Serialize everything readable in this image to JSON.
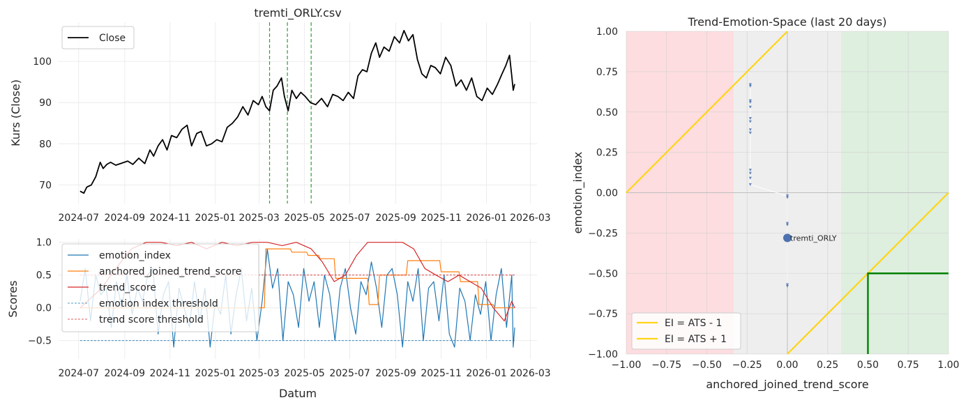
{
  "chart_data": [
    {
      "id": "price",
      "type": "line",
      "title": "tremti_ORLY.csv",
      "xlabel": "",
      "ylabel": "Kurs (Close)",
      "xlim": [
        "2024-06-04",
        "2026-03-10"
      ],
      "ylim": [
        65.5,
        109.5
      ],
      "x_ticks": [
        "2024-07",
        "2024-09",
        "2024-11",
        "2025-01",
        "2025-03",
        "2025-05",
        "2025-07",
        "2025-09",
        "2025-11",
        "2026-01",
        "2026-03"
      ],
      "y_ticks": [
        70,
        80,
        90,
        100
      ],
      "legend": {
        "position": "top-left",
        "entries": [
          "Close"
        ]
      },
      "grid": true,
      "vlines": [
        "2025-03-15",
        "2025-04-08",
        "2025-05-10"
      ],
      "series": [
        {
          "name": "Close",
          "color": "#000000",
          "x": [
            "2024-07-03",
            "2024-07-08",
            "2024-07-12",
            "2024-07-18",
            "2024-07-24",
            "2024-07-30",
            "2024-08-03",
            "2024-08-08",
            "2024-08-13",
            "2024-08-20",
            "2024-08-28",
            "2024-09-05",
            "2024-09-12",
            "2024-09-20",
            "2024-09-28",
            "2024-10-05",
            "2024-10-10",
            "2024-10-16",
            "2024-10-22",
            "2024-10-28",
            "2024-11-03",
            "2024-11-10",
            "2024-11-17",
            "2024-11-24",
            "2024-11-30",
            "2024-12-07",
            "2024-12-13",
            "2024-12-20",
            "2024-12-27",
            "2025-01-03",
            "2025-01-10",
            "2025-01-17",
            "2025-01-24",
            "2025-01-31",
            "2025-02-07",
            "2025-02-14",
            "2025-02-21",
            "2025-02-28",
            "2025-03-05",
            "2025-03-10",
            "2025-03-15",
            "2025-03-20",
            "2025-03-25",
            "2025-03-31",
            "2025-04-04",
            "2025-04-09",
            "2025-04-14",
            "2025-04-20",
            "2025-04-26",
            "2025-05-02",
            "2025-05-09",
            "2025-05-16",
            "2025-05-24",
            "2025-06-01",
            "2025-06-08",
            "2025-06-15",
            "2025-06-22",
            "2025-06-29",
            "2025-07-06",
            "2025-07-12",
            "2025-07-18",
            "2025-07-24",
            "2025-07-30",
            "2025-08-05",
            "2025-08-10",
            "2025-08-16",
            "2025-08-23",
            "2025-08-30",
            "2025-09-06",
            "2025-09-12",
            "2025-09-18",
            "2025-09-24",
            "2025-09-30",
            "2025-10-06",
            "2025-10-12",
            "2025-10-18",
            "2025-10-24",
            "2025-10-31",
            "2025-11-07",
            "2025-11-14",
            "2025-11-21",
            "2025-11-28",
            "2025-12-05",
            "2025-12-12",
            "2025-12-19",
            "2025-12-26",
            "2026-01-02",
            "2026-01-09",
            "2026-01-16",
            "2026-01-22",
            "2026-01-27",
            "2026-02-01",
            "2026-02-04",
            "2026-02-06",
            "2026-02-08"
          ],
          "y": [
            68.5,
            68.0,
            69.5,
            70.0,
            72.0,
            75.5,
            74.0,
            75.0,
            75.5,
            74.8,
            75.3,
            75.8,
            75.0,
            76.5,
            75.2,
            78.5,
            77.0,
            79.5,
            81.0,
            78.5,
            82.0,
            81.5,
            83.5,
            84.5,
            79.5,
            82.5,
            83.0,
            79.5,
            80.0,
            81.0,
            80.5,
            84.0,
            85.0,
            86.5,
            89.0,
            87.0,
            90.5,
            89.5,
            91.5,
            89.0,
            88.0,
            93.0,
            94.0,
            96.0,
            91.5,
            88.0,
            93.0,
            91.0,
            92.5,
            91.5,
            90.0,
            89.5,
            91.0,
            89.0,
            92.0,
            91.5,
            90.5,
            92.5,
            91.0,
            96.5,
            98.0,
            97.5,
            102.0,
            104.5,
            101.0,
            103.5,
            102.5,
            106.0,
            104.5,
            107.5,
            105.0,
            106.5,
            100.5,
            97.0,
            96.0,
            99.0,
            98.5,
            97.0,
            101.0,
            99.0,
            94.0,
            95.5,
            93.0,
            96.0,
            91.5,
            90.5,
            93.5,
            92.0,
            94.5,
            97.0,
            99.0,
            101.5,
            96.5,
            93.0,
            94.5
          ]
        }
      ]
    },
    {
      "id": "scores",
      "type": "line",
      "title": "",
      "xlabel": "Datum",
      "ylabel": "Scores",
      "xlim": [
        "2024-06-04",
        "2026-03-10"
      ],
      "ylim": [
        -0.78,
        1.05
      ],
      "x_ticks": [
        "2024-07",
        "2024-09",
        "2024-11",
        "2025-01",
        "2025-03",
        "2025-05",
        "2025-07",
        "2025-09",
        "2025-11",
        "2026-01",
        "2026-03"
      ],
      "y_ticks": [
        -0.5,
        0.0,
        0.5,
        1.0
      ],
      "y_tick_labels": [
        "−0.5",
        "0.0",
        "0.5",
        "1.0"
      ],
      "legend": {
        "position": "upper-left",
        "entries": [
          "emotion_index",
          "anchored_joined_trend_score",
          "trend_score",
          "emotion index threshold",
          "trend score threshold"
        ]
      },
      "grid": true,
      "series": [
        {
          "name": "emotion_index",
          "color": "#1f77b4",
          "x": [
            "2024-07-03",
            "2024-07-10",
            "2024-07-17",
            "2024-07-24",
            "2024-07-31",
            "2024-08-07",
            "2024-08-14",
            "2024-08-21",
            "2024-08-28",
            "2024-09-04",
            "2024-09-11",
            "2024-09-18",
            "2024-09-25",
            "2024-10-02",
            "2024-10-09",
            "2024-10-16",
            "2024-10-23",
            "2024-10-30",
            "2024-11-06",
            "2024-11-13",
            "2024-11-20",
            "2024-11-27",
            "2024-12-04",
            "2024-12-11",
            "2024-12-18",
            "2024-12-25",
            "2025-01-01",
            "2025-01-08",
            "2025-01-15",
            "2025-01-22",
            "2025-01-29",
            "2025-02-05",
            "2025-02-12",
            "2025-02-19",
            "2025-02-26",
            "2025-03-05",
            "2025-03-12",
            "2025-03-19",
            "2025-03-26",
            "2025-04-02",
            "2025-04-09",
            "2025-04-16",
            "2025-04-23",
            "2025-04-30",
            "2025-05-07",
            "2025-05-14",
            "2025-05-21",
            "2025-05-28",
            "2025-06-04",
            "2025-06-11",
            "2025-06-18",
            "2025-06-25",
            "2025-07-02",
            "2025-07-09",
            "2025-07-16",
            "2025-07-23",
            "2025-07-30",
            "2025-08-06",
            "2025-08-13",
            "2025-08-20",
            "2025-08-27",
            "2025-09-03",
            "2025-09-10",
            "2025-09-17",
            "2025-09-24",
            "2025-10-01",
            "2025-10-08",
            "2025-10-15",
            "2025-10-22",
            "2025-10-29",
            "2025-11-05",
            "2025-11-12",
            "2025-11-19",
            "2025-11-26",
            "2025-12-03",
            "2025-12-10",
            "2025-12-17",
            "2025-12-24",
            "2025-12-31",
            "2026-01-07",
            "2026-01-14",
            "2026-01-21",
            "2026-01-28",
            "2026-02-04",
            "2026-02-06",
            "2026-02-08"
          ],
          "y": [
            0.1,
            0.6,
            -0.2,
            0.5,
            0.2,
            0.3,
            -0.3,
            0.4,
            0.0,
            0.5,
            -0.1,
            0.3,
            0.1,
            0.5,
            0.6,
            -0.4,
            0.2,
            0.4,
            -0.6,
            0.3,
            0.0,
            -0.3,
            0.4,
            -0.2,
            0.3,
            -0.6,
            0.1,
            -0.1,
            0.5,
            -0.4,
            0.2,
            0.6,
            -0.2,
            0.3,
            -0.5,
            0.1,
            0.9,
            0.3,
            0.6,
            -0.5,
            0.4,
            0.2,
            -0.3,
            0.6,
            0.1,
            0.4,
            -0.3,
            0.5,
            0.2,
            -0.5,
            0.3,
            0.6,
            0.0,
            -0.4,
            0.4,
            0.2,
            0.7,
            0.3,
            -0.3,
            0.5,
            0.6,
            0.2,
            -0.6,
            0.4,
            0.1,
            0.6,
            -0.5,
            0.3,
            0.4,
            -0.2,
            0.5,
            -0.4,
            -0.6,
            0.3,
            0.1,
            -0.5,
            0.2,
            -0.1,
            0.4,
            -0.5,
            0.2,
            0.6,
            -0.3,
            0.5,
            -0.6,
            -0.3
          ]
        },
        {
          "name": "anchored_joined_trend_score",
          "color": "#ff7f0e",
          "x": [
            "2024-07-03",
            "2024-10-15",
            "2024-10-16",
            "2025-02-10",
            "2025-02-12",
            "2025-03-08",
            "2025-03-10",
            "2025-04-12",
            "2025-04-14",
            "2025-05-04",
            "2025-05-06",
            "2025-05-20",
            "2025-05-22",
            "2025-06-10",
            "2025-06-12",
            "2025-07-25",
            "2025-07-27",
            "2025-08-08",
            "2025-08-10",
            "2025-09-15",
            "2025-09-17",
            "2025-10-10",
            "2025-10-12",
            "2025-10-30",
            "2025-11-01",
            "2025-11-25",
            "2025-11-27",
            "2025-12-20",
            "2025-12-22",
            "2026-01-10",
            "2026-01-12",
            "2026-02-01",
            "2026-02-03",
            "2026-02-08"
          ],
          "y": [
            0.0,
            0.0,
            0.0,
            0.0,
            0.0,
            0.0,
            0.9,
            0.9,
            0.85,
            0.85,
            0.8,
            0.8,
            0.75,
            0.75,
            0.45,
            0.45,
            0.05,
            0.05,
            0.5,
            0.5,
            0.72,
            0.72,
            0.72,
            0.72,
            0.55,
            0.55,
            0.4,
            0.4,
            0.05,
            0.05,
            0.0,
            0.0,
            0.0,
            0.0
          ]
        },
        {
          "name": "trend_score",
          "color": "#d62728",
          "x": [
            "2024-07-03",
            "2024-08-01",
            "2024-08-20",
            "2024-09-10",
            "2024-09-30",
            "2024-10-20",
            "2024-11-10",
            "2024-11-30",
            "2024-12-20",
            "2025-01-10",
            "2025-01-30",
            "2025-02-20",
            "2025-03-12",
            "2025-04-01",
            "2025-04-20",
            "2025-05-10",
            "2025-05-25",
            "2025-06-10",
            "2025-06-25",
            "2025-07-10",
            "2025-07-25",
            "2025-08-10",
            "2025-08-25",
            "2025-09-10",
            "2025-09-25",
            "2025-10-10",
            "2025-10-25",
            "2025-11-10",
            "2025-11-25",
            "2025-12-10",
            "2025-12-25",
            "2026-01-10",
            "2026-01-25",
            "2026-02-04",
            "2026-02-08"
          ],
          "y": [
            0.0,
            0.3,
            0.6,
            0.9,
            1.0,
            1.0,
            0.95,
            1.0,
            0.9,
            1.0,
            0.95,
            1.0,
            1.0,
            0.95,
            1.0,
            0.9,
            0.7,
            0.4,
            0.5,
            0.8,
            1.0,
            1.0,
            1.0,
            1.0,
            0.9,
            0.6,
            0.5,
            0.4,
            0.5,
            0.4,
            0.3,
            0.0,
            -0.2,
            0.1,
            0.0
          ]
        },
        {
          "name": "emotion index threshold",
          "color": "#1f77b4",
          "dashed": true,
          "x": [
            "2024-07-03",
            "2026-02-08"
          ],
          "y": [
            -0.5,
            -0.5
          ]
        },
        {
          "name": "trend score threshold",
          "color": "#d62728",
          "dashed": true,
          "x": [
            "2024-07-03",
            "2026-02-08"
          ],
          "y": [
            0.5,
            0.5
          ]
        }
      ]
    },
    {
      "id": "space",
      "type": "scatter",
      "title": "Trend-Emotion-Space (last 20 days)",
      "xlabel": "anchored_joined_trend_score",
      "ylabel": "emotion_index",
      "xlim": [
        -1.0,
        1.0
      ],
      "ylim": [
        -1.0,
        1.0
      ],
      "x_ticks": [
        -1.0,
        -0.75,
        -0.5,
        -0.25,
        0.0,
        0.25,
        0.5,
        0.75,
        1.0
      ],
      "x_tick_labels": [
        "−1.00",
        "−0.75",
        "−0.50",
        "−0.25",
        "0.00",
        "0.25",
        "0.50",
        "0.75",
        "1.00"
      ],
      "y_ticks": [
        -1.0,
        -0.75,
        -0.5,
        -0.25,
        0.0,
        0.25,
        0.5,
        0.75,
        1.0
      ],
      "y_tick_labels": [
        "−1.00",
        "−0.75",
        "−0.50",
        "−0.25",
        "0.00",
        "0.25",
        "0.50",
        "0.75",
        "1.00"
      ],
      "legend": {
        "position": "lower-left",
        "entries": [
          "EI = ATS - 1",
          "EI = ATS + 1"
        ]
      },
      "grid": true,
      "zones": [
        {
          "x0": -1.0,
          "x1": -0.333,
          "color": "#fddddf"
        },
        {
          "x0": -0.333,
          "x1": 0.333,
          "color": "#eeeeee"
        },
        {
          "x0": 0.333,
          "x1": 1.0,
          "color": "#deeedf"
        }
      ],
      "lines": [
        {
          "name": "EI = ATS - 1",
          "color": "#ffd416",
          "x": [
            0.0,
            1.0
          ],
          "y": [
            -1.0,
            0.0
          ]
        },
        {
          "name": "EI = ATS + 1",
          "color": "#ffd416",
          "x": [
            -1.0,
            0.0
          ],
          "y": [
            0.0,
            1.0
          ]
        }
      ],
      "box": {
        "color": "#008000",
        "x": [
          0.5,
          0.5,
          1.0
        ],
        "y": [
          -1.0,
          -0.5,
          -0.5
        ]
      },
      "trail": {
        "color": "#4c72b0",
        "x": [
          -0.23,
          -0.23,
          -0.23,
          -0.23,
          -0.23,
          -0.23,
          -0.23,
          -0.23,
          -0.23,
          -0.23,
          -0.23,
          -0.23,
          -0.23,
          0.0,
          0.0,
          0.0,
          0.0,
          0.0,
          0.0
        ],
        "y": [
          0.67,
          0.66,
          0.57,
          0.56,
          0.53,
          0.46,
          0.44,
          0.39,
          0.37,
          0.14,
          0.12,
          0.09,
          0.05,
          -0.02,
          -0.03,
          -0.19,
          -0.2,
          -0.57,
          -0.58
        ]
      },
      "point": {
        "label": "tremti_ORLY",
        "x": 0.0,
        "y": -0.28,
        "color": "#4c72b0"
      }
    }
  ]
}
